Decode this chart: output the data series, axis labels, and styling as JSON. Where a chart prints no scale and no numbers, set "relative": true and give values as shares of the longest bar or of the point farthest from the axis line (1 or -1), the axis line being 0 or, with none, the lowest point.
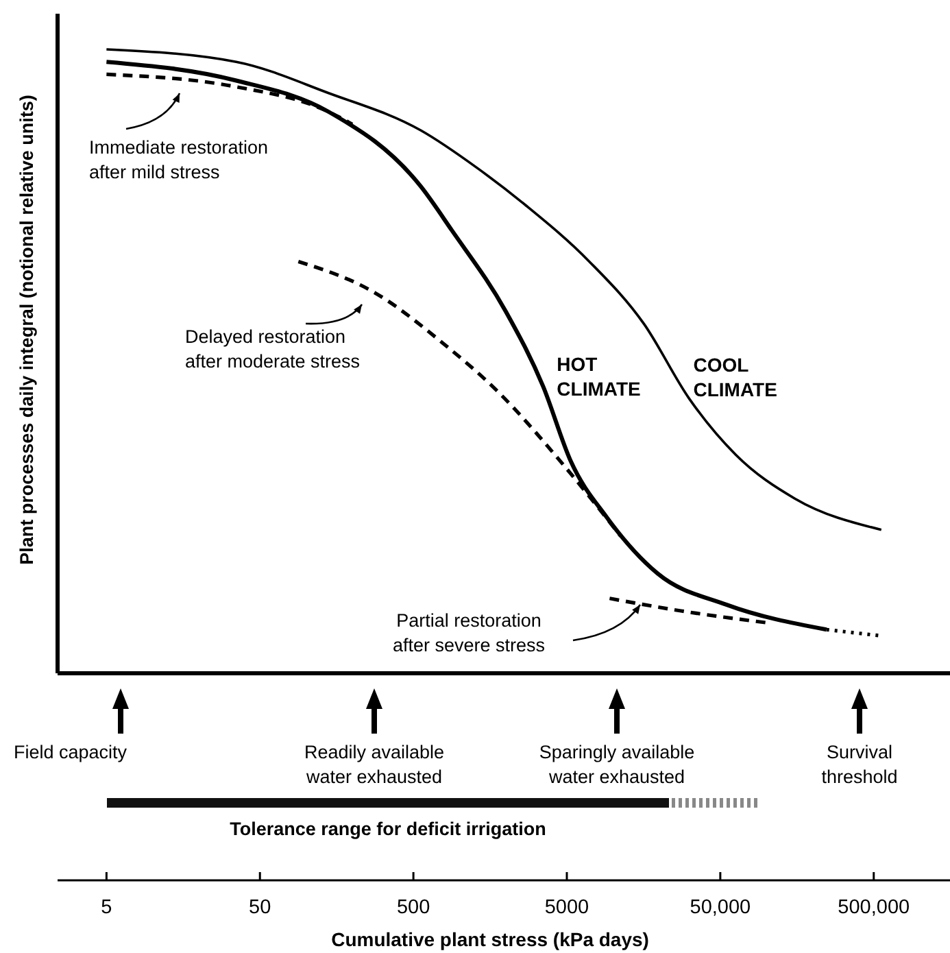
{
  "chart_data": {
    "type": "line",
    "relative": true,
    "log": "x",
    "tick_labels": "x",
    "xlim": [
      2.4,
      1570000
    ],
    "xticks": [
      5,
      50,
      500,
      5000,
      {
        "value": 50000,
        "label": "50,000"
      },
      {
        "value": 500000,
        "label": "500,000"
      }
    ],
    "xlabel": "Cumulative plant stress (kPa days)",
    "ylabel": "Plant processes daily integral (notional relative units)",
    "series": [
      {
        "name": "COOL CLIMATE",
        "color": "#000000",
        "line_style": "solid",
        "x": [
          5,
          35,
          140,
          560,
          1300,
          2700,
          7000,
          15900,
          31400,
          63200,
          153000,
          560000
        ],
        "values": [
          1.0,
          0.98,
          0.93,
          0.87,
          0.81,
          0.75,
          0.66,
          0.56,
          0.44,
          0.35,
          0.28,
          0.23
        ]
      },
      {
        "name": "HOT CLIMATE",
        "color": "#000000",
        "line_style": "solid",
        "x": [
          5,
          35,
          140,
          560,
          890,
          2000,
          3500,
          5300,
          9100,
          19500,
          54700,
          246000
        ],
        "values": [
          0.98,
          0.95,
          0.9,
          0.78,
          0.71,
          0.58,
          0.46,
          0.34,
          0.25,
          0.16,
          0.11,
          0.07
        ]
      },
      {
        "color": "#000000",
        "line_style": "dotted",
        "x": [
          246000,
          560000
        ],
        "values": [
          0.07,
          0.06
        ]
      },
      {
        "color": "#000000",
        "line_style": "dashed",
        "x": [
          5,
          35,
          140,
          200
        ],
        "values": [
          0.96,
          0.94,
          0.9,
          0.88
        ]
      },
      {
        "color": "#000000",
        "line_style": "dashed",
        "x": [
          89,
          280,
          770,
          1800,
          4900,
          11200
        ],
        "values": [
          0.66,
          0.61,
          0.53,
          0.45,
          0.33,
          0.22
        ]
      },
      {
        "color": "#000000",
        "line_style": "dashed",
        "x": [
          9500,
          27700,
          108000
        ],
        "values": [
          0.12,
          0.1,
          0.08
        ]
      }
    ],
    "annotations": [
      "Immediate restoration\nafter mild stress",
      "Delayed restoration\nafter moderate stress",
      "Partial restoration\nafter severe stress",
      "Field capacity",
      "Readily available\nwater exhausted",
      "Sparingly available\nwater exhausted",
      "Survival\nthreshold",
      "Tolerance range for deficit irrigation"
    ]
  }
}
